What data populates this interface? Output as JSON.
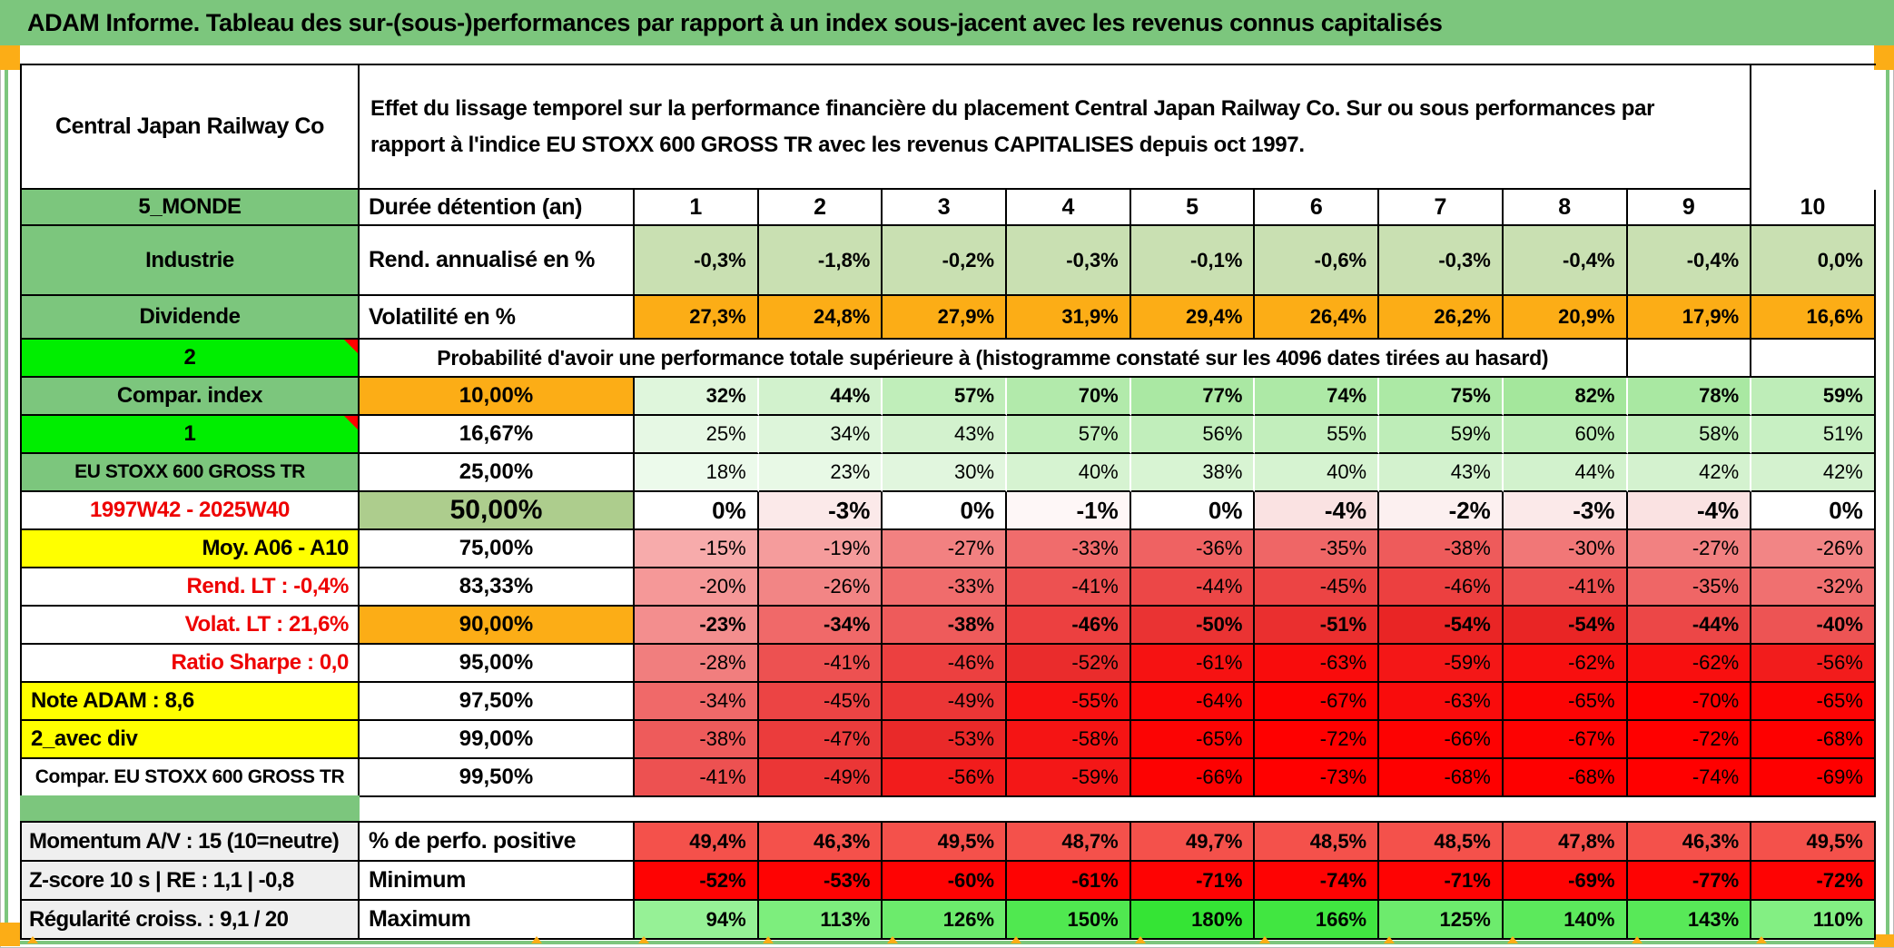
{
  "title": "ADAM Informe. Tableau des sur-(sous-)performances par rapport à un index sous-jacent avec les revenus connus capitalisés",
  "colors": {
    "green": "#7CC67D",
    "bright_green": "#00EE00",
    "muted_green": "#ADCD8D",
    "orange": "#FCAD16",
    "yellow": "#FFFF00",
    "light_green_row": "#C9E0B2",
    "gray_label": "#EFEFEF",
    "salmon_row": "#F4514B",
    "pure_red_row": "#FE0303",
    "note_red": "#FF0000",
    "white": "#FFFFFF",
    "red_text": "#EE0000"
  },
  "header": {
    "company": "Central Japan Railway Co",
    "description_line1": "Effet du lissage temporel sur la performance financière du placement Central Japan Railway Co. Sur ou sous performances par",
    "description_line2": "rapport à l'indice EU STOXX 600 GROSS TR avec les revenus CAPITALISES depuis oct 1997."
  },
  "top_rows": [
    {
      "label": "5_MONDE",
      "param": "Durée détention (an)",
      "center": true,
      "digits": true,
      "value_bg": "#FFFFFF",
      "values": [
        "1",
        "2",
        "3",
        "4",
        "5",
        "6",
        "7",
        "8",
        "9",
        "10"
      ]
    },
    {
      "label": "Industrie",
      "param": "Rend. annualisé en %",
      "bold": true,
      "value_bg": "#C9E0B2",
      "values": [
        "-0,3%",
        "-1,8%",
        "-0,2%",
        "-0,3%",
        "-0,1%",
        "-0,6%",
        "-0,3%",
        "-0,4%",
        "-0,4%",
        "0,0%"
      ]
    },
    {
      "label": "Dividende",
      "param": "Volatilité en %",
      "value_bg": "#FCAD16",
      "values": [
        "27,3%",
        "24,8%",
        "27,9%",
        "31,9%",
        "29,4%",
        "26,4%",
        "26,2%",
        "20,9%",
        "17,9%",
        "16,6%"
      ]
    }
  ],
  "probability_banner": {
    "label": "2",
    "label_bg": "#00EE00",
    "note": true,
    "text": "Probabilité d'avoir une performance totale supérieure à (histogramme constaté sur les 4096 dates tirées au hasard)"
  },
  "matrix": {
    "rows": [
      {
        "label": "Compar. index",
        "label_bg": "#7CC67D",
        "threshold": "10,00%",
        "threshold_bg": "#FCAD16",
        "bold": true,
        "white_sep": true,
        "values": [
          "32%",
          "44%",
          "57%",
          "70%",
          "77%",
          "74%",
          "75%",
          "82%",
          "78%",
          "59%"
        ],
        "value_bgs": [
          "#dff6dc",
          "#d2f2cd",
          "#c0eeba",
          "#b2eaab",
          "#aae8a3",
          "#ade9a6",
          "#ace9a5",
          "#a4e79c",
          "#a9e8a2",
          "#beedb8"
        ]
      },
      {
        "label": "1",
        "label_bg": "#00EE00",
        "note": true,
        "threshold": "16,67%",
        "threshold_bg": "#FFFFFF",
        "white_sep": true,
        "values": [
          "25%",
          "34%",
          "43%",
          "57%",
          "56%",
          "55%",
          "59%",
          "60%",
          "58%",
          "51%"
        ],
        "value_bgs": [
          "#e6f8e4",
          "#ddf5da",
          "#d3f2ce",
          "#c0eeba",
          "#c1eebb",
          "#c2eebc",
          "#beedb8",
          "#bdedb7",
          "#bfedb9",
          "#c8f0c3"
        ]
      },
      {
        "label": "EU STOXX 600 GROSS TR",
        "label_bg": "#7CC67D",
        "label_small": true,
        "threshold": "25,00%",
        "threshold_bg": "#FFFFFF",
        "white_sep": true,
        "values": [
          "18%",
          "23%",
          "30%",
          "40%",
          "38%",
          "40%",
          "43%",
          "44%",
          "42%",
          "42%"
        ],
        "value_bgs": [
          "#ecfaeb",
          "#e8f9e6",
          "#e1f6de",
          "#d6f3d1",
          "#d8f4d3",
          "#d6f3d1",
          "#d3f2ce",
          "#d2f2cd",
          "#d4f2cf",
          "#d4f2cf"
        ]
      },
      {
        "label": "1997W42 - 2025W40",
        "label_bg": "#FFFFFF",
        "label_color": "#EE0000",
        "threshold": "50,00%",
        "threshold_bg": "#ADCD8D",
        "threshold_big": true,
        "big": true,
        "values": [
          "0%",
          "-3%",
          "0%",
          "-1%",
          "0%",
          "-4%",
          "-2%",
          "-3%",
          "-4%",
          "0%"
        ],
        "value_bgs": [
          "#ffffff",
          "#fbe9e9",
          "#ffffff",
          "#fef7f7",
          "#ffffff",
          "#fae2e2",
          "#fcf0f0",
          "#fbe9e9",
          "#fae2e2",
          "#ffffff"
        ]
      },
      {
        "label": "Moy. A06 - A10",
        "label_bg": "#FFFF00",
        "label_align": "right",
        "threshold": "75,00%",
        "threshold_bg": "#FFFFFF",
        "values": [
          "-15%",
          "-19%",
          "-27%",
          "-33%",
          "-36%",
          "-35%",
          "-38%",
          "-30%",
          "-27%",
          "-26%"
        ],
        "value_bgs": [
          "#f7abab",
          "#f59c9c",
          "#f28181",
          "#f06c6c",
          "#ef6262",
          "#ef6666",
          "#ee5b5b",
          "#f17777",
          "#f28181",
          "#f28585"
        ]
      },
      {
        "label": "Rend. LT :   -0,4%",
        "label_bg": "#FFFFFF",
        "label_color": "#EE0000",
        "label_align": "right",
        "threshold": "83,33%",
        "threshold_bg": "#FFFFFF",
        "values": [
          "-20%",
          "-26%",
          "-33%",
          "-41%",
          "-44%",
          "-45%",
          "-46%",
          "-41%",
          "-35%",
          "-32%"
        ],
        "value_bgs": [
          "#f59898",
          "#f28585",
          "#f06c6c",
          "#ed5151",
          "#ec4747",
          "#ec4444",
          "#ec4040",
          "#ed5151",
          "#ef6666",
          "#f07070"
        ]
      },
      {
        "label": "Volat. LT :   21,6%",
        "label_bg": "#FFFFFF",
        "label_color": "#EE0000",
        "label_align": "right",
        "threshold": "90,00%",
        "threshold_bg": "#FCAD16",
        "bold": true,
        "values": [
          "-23%",
          "-34%",
          "-38%",
          "-46%",
          "-50%",
          "-51%",
          "-54%",
          "-54%",
          "-44%",
          "-40%"
        ],
        "value_bgs": [
          "#f38e8e",
          "#f06969",
          "#ee5b5b",
          "#ec4040",
          "#ea3333",
          "#ea2f2f",
          "#e92525",
          "#e92525",
          "#ec4747",
          "#ed5454"
        ]
      },
      {
        "label": "Ratio Sharpe :   0,0",
        "label_bg": "#FFFFFF",
        "label_color": "#EE0000",
        "label_align": "right",
        "threshold": "95,00%",
        "threshold_bg": "#FFFFFF",
        "values": [
          "-28%",
          "-41%",
          "-46%",
          "-52%",
          "-61%",
          "-63%",
          "-59%",
          "-62%",
          "-62%",
          "-56%"
        ],
        "value_bgs": [
          "#f17e7e",
          "#ed5151",
          "#ec4040",
          "#ea2c2c",
          "#f61212",
          "#f90c0c",
          "#f41717",
          "#f80f0f",
          "#f80f0f",
          "#f21c1c"
        ]
      },
      {
        "label": "Note ADAM : 8,6",
        "label_bg": "#FFFF00",
        "label_align": "left",
        "threshold": "97,50%",
        "threshold_bg": "#FFFFFF",
        "values": [
          "-34%",
          "-45%",
          "-49%",
          "-55%",
          "-64%",
          "-67%",
          "-63%",
          "-65%",
          "-70%",
          "-65%"
        ],
        "value_bgs": [
          "#f06969",
          "#ec4444",
          "#eb3636",
          "#f81111",
          "#fb0707",
          "#fd0202",
          "#f90c0c",
          "#fc0404",
          "#fe0000",
          "#fc0404"
        ]
      },
      {
        "label": "2_avec div",
        "label_bg": "#FFFF00",
        "label_align": "left",
        "threshold": "99,00%",
        "threshold_bg": "#FFFFFF",
        "values": [
          "-38%",
          "-47%",
          "-53%",
          "-58%",
          "-65%",
          "-72%",
          "-66%",
          "-67%",
          "-72%",
          "-68%"
        ],
        "value_bgs": [
          "#ee5b5b",
          "#eb3c3c",
          "#e92929",
          "#f51414",
          "#fc0404",
          "#ff0000",
          "#fd0202",
          "#fd0202",
          "#ff0000",
          "#fe0000"
        ]
      },
      {
        "label": "Compar. EU STOXX 600 GROSS TR",
        "label_bg": "#FFFFFF",
        "label_small": true,
        "threshold": "99,50%",
        "threshold_bg": "#FFFFFF",
        "values": [
          "-41%",
          "-49%",
          "-56%",
          "-59%",
          "-66%",
          "-73%",
          "-68%",
          "-68%",
          "-74%",
          "-69%"
        ],
        "value_bgs": [
          "#ed5151",
          "#eb3636",
          "#f21c1c",
          "#f41717",
          "#fd0202",
          "#ff0000",
          "#fe0000",
          "#fe0000",
          "#ff0000",
          "#fe0000"
        ]
      }
    ]
  },
  "bottom_rows": [
    {
      "label": "Momentum A/V : 15 (10=neutre)",
      "param": "% de perfo. positive",
      "label_bg": "#EFEFEF",
      "value_bg": "#F4514B",
      "values": [
        "49,4%",
        "46,3%",
        "49,5%",
        "48,7%",
        "49,7%",
        "48,5%",
        "48,5%",
        "47,8%",
        "46,3%",
        "49,5%"
      ]
    },
    {
      "label": "Z-score 10 s | RE : 1,1 | -0,8",
      "param": "Minimum",
      "label_bg": "#EFEFEF",
      "value_bg": "#FE0303",
      "values": [
        "-52%",
        "-53%",
        "-60%",
        "-61%",
        "-71%",
        "-74%",
        "-71%",
        "-69%",
        "-77%",
        "-72%"
      ]
    },
    {
      "label": "Régularité croiss. : 9,1 / 20",
      "param": "Maximum",
      "label_bg": "#EFEFEF",
      "values": [
        "94%",
        "113%",
        "126%",
        "150%",
        "180%",
        "166%",
        "125%",
        "140%",
        "143%",
        "110%"
      ],
      "value_bgs": [
        "#96f196",
        "#7dee7d",
        "#6ceb6c",
        "#50e850",
        "#35e435",
        "#41e641",
        "#6deb6d",
        "#5ce95c",
        "#58e958",
        "#83ef83"
      ]
    }
  ]
}
